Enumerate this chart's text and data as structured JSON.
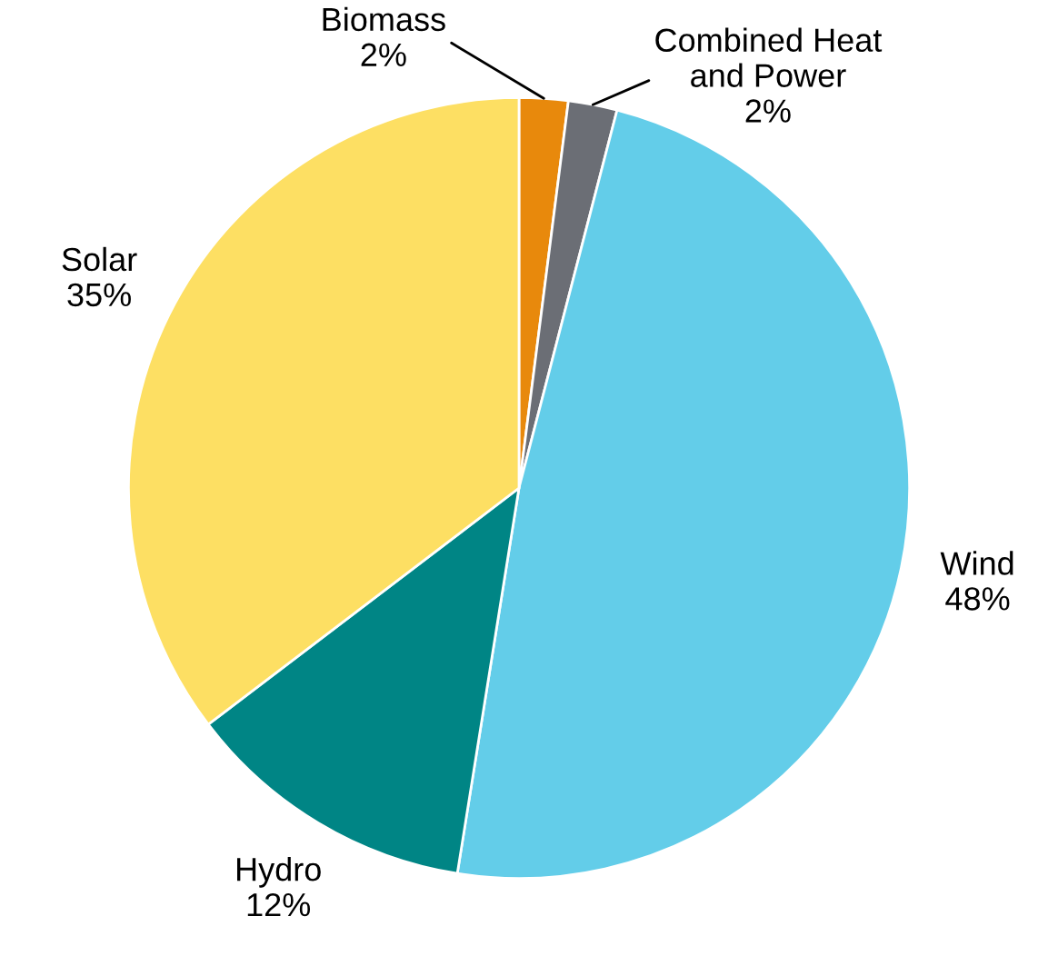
{
  "chart_data": {
    "type": "pie",
    "categories": [
      "Biomass",
      "Combined Heat and Power",
      "Wind",
      "Hydro",
      "Solar"
    ],
    "values": [
      2,
      2,
      48,
      12,
      35
    ],
    "value_labels": [
      "2%",
      "2%",
      "48%",
      "12%",
      "35%"
    ],
    "colors": [
      "#e8890c",
      "#6b6e75",
      "#63cde9",
      "#008585",
      "#fddf63"
    ],
    "legend": false
  }
}
